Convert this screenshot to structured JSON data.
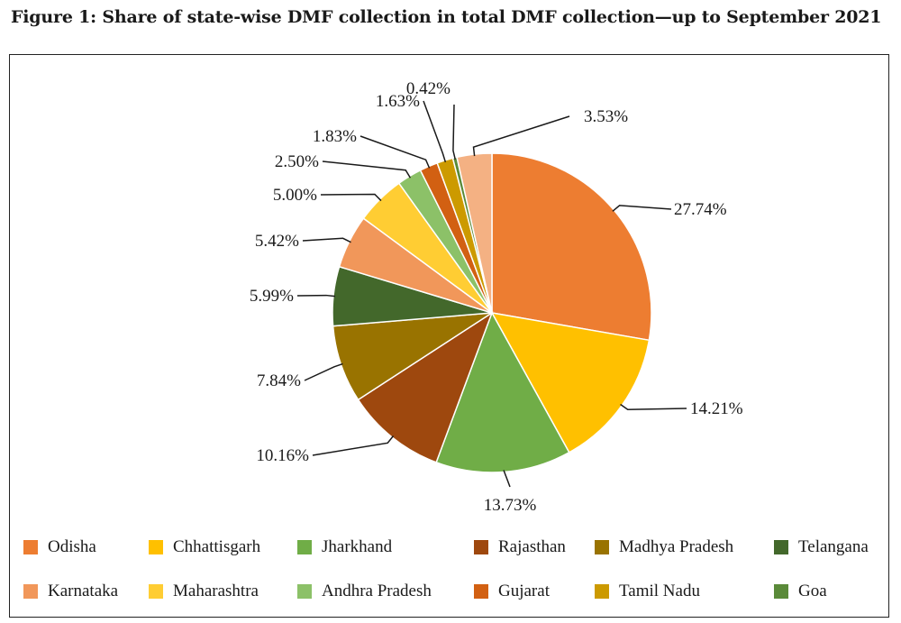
{
  "title": "Figure 1: Share of state-wise DMF collection in total DMF collection—up to September 2021",
  "chart_data": {
    "type": "pie",
    "slices": [
      {
        "name": "Odisha",
        "value": 27.74,
        "label": "27.74%",
        "color": "#ED7D31"
      },
      {
        "name": "Chhattisgarh",
        "value": 14.21,
        "label": "14.21%",
        "color": "#FFC000"
      },
      {
        "name": "Jharkhand",
        "value": 13.73,
        "label": "13.73%",
        "color": "#70AD47"
      },
      {
        "name": "Rajasthan",
        "value": 10.16,
        "label": "10.16%",
        "color": "#9E480E"
      },
      {
        "name": "Madhya Pradesh",
        "value": 7.84,
        "label": "7.84%",
        "color": "#997300"
      },
      {
        "name": "Telangana",
        "value": 5.99,
        "label": "5.99%",
        "color": "#43682B"
      },
      {
        "name": "Karnataka",
        "value": 5.42,
        "label": "5.42%",
        "color": "#F1975A"
      },
      {
        "name": "Maharashtra",
        "value": 5.0,
        "label": "5.00%",
        "color": "#FFCD33"
      },
      {
        "name": "Andhra Pradesh",
        "value": 2.5,
        "label": "2.50%",
        "color": "#8CC168"
      },
      {
        "name": "Gujarat",
        "value": 1.83,
        "label": "1.83%",
        "color": "#D26012"
      },
      {
        "name": "Tamil Nadu",
        "value": 1.63,
        "label": "1.63%",
        "color": "#CC9A00"
      },
      {
        "name": "Goa",
        "value": 0.42,
        "label": "0.42%",
        "color": "#5A8A39"
      },
      {
        "name": "",
        "value": 3.53,
        "label": "3.53%",
        "color": "#F4B183"
      }
    ],
    "legend_position": "bottom"
  }
}
